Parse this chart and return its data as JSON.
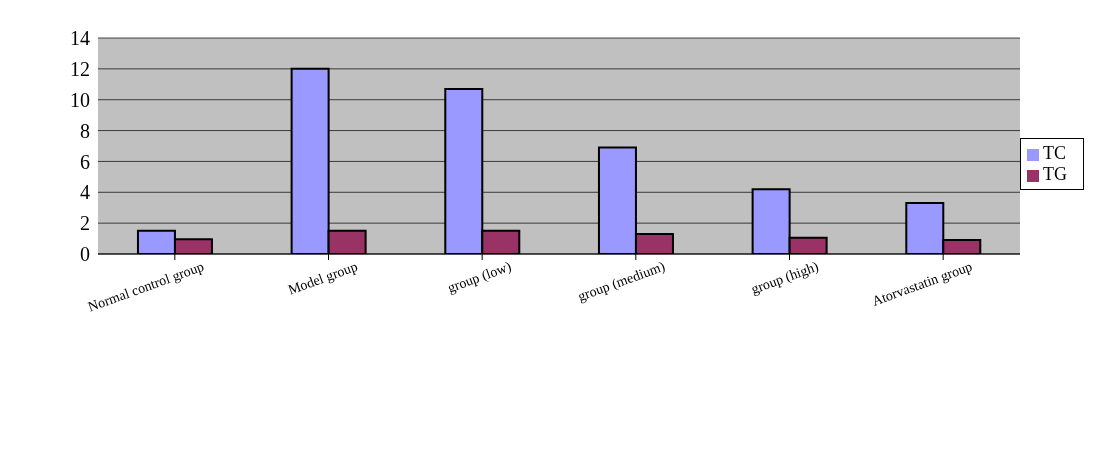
{
  "chart_data": {
    "type": "bar",
    "categories": [
      "Normal control group",
      "Model group",
      "group (low)",
      "group (medium)",
      "group (high)",
      "Atorvastatin group"
    ],
    "series": [
      {
        "name": "TC",
        "color": "#9999ff",
        "values": [
          1.5,
          12.0,
          10.7,
          6.9,
          4.2,
          3.3
        ]
      },
      {
        "name": "TG",
        "color": "#993366",
        "values": [
          0.95,
          1.5,
          1.5,
          1.3,
          1.05,
          0.9
        ]
      }
    ],
    "ylim": [
      0,
      14
    ],
    "yticks": [
      0,
      2,
      4,
      6,
      8,
      10,
      12,
      14
    ],
    "grid": "y",
    "legend": "right"
  }
}
